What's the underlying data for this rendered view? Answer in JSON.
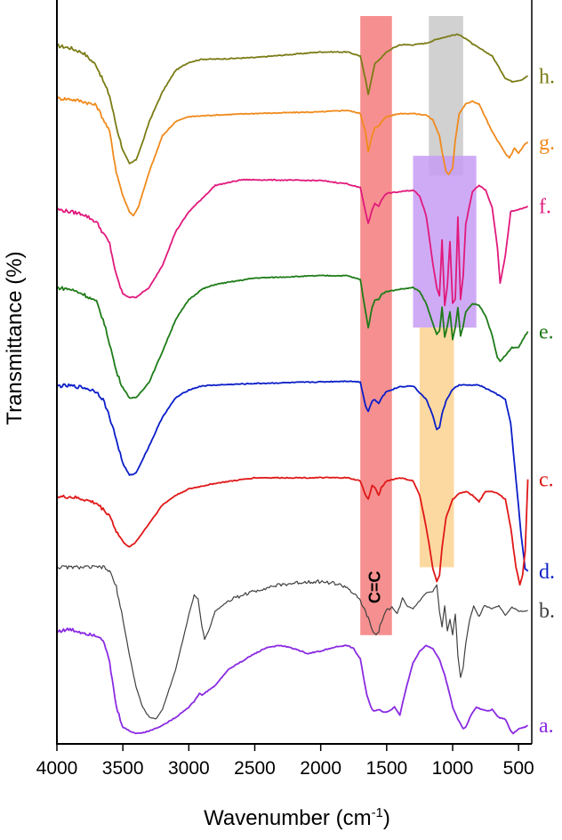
{
  "chart_data": {
    "type": "line",
    "xlabel": "Wavenumber (cm",
    "xlabel_sup": "-1",
    "xlabel_suffix": ")",
    "ylabel": "Transmittance (%)",
    "xlim": [
      4000,
      400
    ],
    "x_reversed": true,
    "x_ticks": [
      4000,
      3500,
      3000,
      2500,
      2000,
      1500,
      1000,
      500
    ],
    "x_tick_labels": [
      "4000",
      "3500",
      "3000",
      "2500",
      "2000",
      "1500",
      "1000",
      "500"
    ],
    "ylim": [
      0,
      9
    ],
    "y_ticks": false,
    "grid": false,
    "legend": "right-side labels",
    "highlight_bands": [
      {
        "x_start": 1700,
        "x_end": 1460,
        "y_top": 9.0,
        "y_bottom": 1.25,
        "color": "#f47c7c",
        "label": "C=C"
      },
      {
        "x_start": 1180,
        "x_end": 920,
        "y_top": 9.0,
        "y_bottom": 7.0,
        "color": "#c9c9c9",
        "label": ""
      },
      {
        "x_start": 1300,
        "x_end": 820,
        "y_top": 7.25,
        "y_bottom": 5.1,
        "color": "#c79cf5",
        "label": ""
      },
      {
        "x_start": 1250,
        "x_end": 990,
        "y_top": 5.1,
        "y_bottom": 2.1,
        "color": "#fbd28f",
        "label": ""
      }
    ],
    "series": [
      {
        "name": "h.",
        "color": "#7b7c16",
        "base": 8.48,
        "x": [
          4000,
          3900,
          3800,
          3700,
          3600,
          3550,
          3500,
          3450,
          3400,
          3350,
          3300,
          3200,
          3100,
          3000,
          2900,
          2800,
          2500,
          2000,
          1800,
          1700,
          1660,
          1640,
          1610,
          1590,
          1560,
          1540,
          1500,
          1450,
          1400,
          1300,
          1200,
          1100,
          1000,
          960,
          900,
          850,
          800,
          700,
          600,
          550,
          480,
          430
        ],
        "y": [
          8.63,
          8.6,
          8.54,
          8.38,
          8.0,
          7.62,
          7.32,
          7.15,
          7.2,
          7.42,
          7.68,
          8.05,
          8.32,
          8.42,
          8.46,
          8.46,
          8.48,
          8.55,
          8.55,
          8.5,
          8.2,
          8.02,
          8.25,
          8.4,
          8.45,
          8.48,
          8.55,
          8.6,
          8.64,
          8.64,
          8.66,
          8.72,
          8.76,
          8.77,
          8.72,
          8.65,
          8.6,
          8.5,
          8.22,
          8.18,
          8.2,
          8.25
        ]
      },
      {
        "name": "g.",
        "color": "#f08a1c",
        "base": 7.72,
        "x": [
          4000,
          3900,
          3800,
          3700,
          3600,
          3550,
          3500,
          3450,
          3420,
          3380,
          3300,
          3200,
          3100,
          3000,
          2800,
          2500,
          2000,
          1800,
          1700,
          1660,
          1640,
          1610,
          1590,
          1560,
          1540,
          1500,
          1400,
          1300,
          1200,
          1150,
          1100,
          1080,
          1050,
          1030,
          1000,
          980,
          950,
          900,
          850,
          800,
          700,
          600,
          570,
          530,
          500,
          450,
          430
        ],
        "y": [
          7.97,
          7.96,
          7.93,
          7.88,
          7.55,
          7.05,
          6.75,
          6.55,
          6.5,
          6.62,
          7.05,
          7.5,
          7.68,
          7.74,
          7.76,
          7.78,
          7.8,
          7.82,
          7.78,
          7.55,
          7.3,
          7.5,
          7.6,
          7.62,
          7.68,
          7.74,
          7.78,
          7.78,
          7.76,
          7.7,
          7.5,
          7.3,
          7.05,
          7.02,
          7.1,
          7.45,
          7.78,
          7.9,
          7.93,
          7.9,
          7.55,
          7.28,
          7.22,
          7.35,
          7.28,
          7.4,
          7.42
        ]
      },
      {
        "name": "f.",
        "color": "#e1197c",
        "base": 6.55,
        "x": [
          4000,
          3900,
          3800,
          3700,
          3600,
          3550,
          3500,
          3450,
          3400,
          3300,
          3200,
          3100,
          3000,
          2800,
          2600,
          2500,
          2000,
          1800,
          1700,
          1660,
          1640,
          1610,
          1590,
          1560,
          1540,
          1500,
          1400,
          1300,
          1250,
          1200,
          1150,
          1120,
          1100,
          1080,
          1060,
          1040,
          1020,
          1000,
          980,
          960,
          940,
          920,
          900,
          850,
          800,
          750,
          700,
          660,
          640,
          600,
          560,
          500,
          450,
          430
        ],
        "y": [
          6.58,
          6.55,
          6.52,
          6.42,
          6.15,
          5.75,
          5.52,
          5.48,
          5.48,
          5.6,
          5.88,
          6.3,
          6.55,
          6.88,
          6.95,
          6.95,
          6.94,
          6.9,
          6.85,
          6.55,
          6.4,
          6.58,
          6.65,
          6.62,
          6.7,
          6.78,
          6.8,
          6.82,
          6.75,
          6.5,
          5.9,
          5.6,
          5.5,
          6.2,
          5.38,
          5.62,
          6.18,
          5.4,
          5.45,
          6.48,
          5.45,
          5.75,
          6.4,
          6.8,
          6.88,
          6.82,
          6.6,
          6.1,
          5.65,
          6.0,
          6.55,
          6.58,
          6.6,
          6.62
        ]
      },
      {
        "name": "e.",
        "color": "#1f7c19",
        "base": 5.52,
        "x": [
          4000,
          3900,
          3800,
          3700,
          3650,
          3600,
          3550,
          3500,
          3450,
          3400,
          3300,
          3200,
          3100,
          3000,
          2900,
          2800,
          2500,
          2000,
          1800,
          1700,
          1660,
          1640,
          1610,
          1590,
          1560,
          1540,
          1500,
          1400,
          1300,
          1250,
          1200,
          1150,
          1120,
          1100,
          1080,
          1060,
          1040,
          1020,
          1000,
          980,
          960,
          940,
          920,
          900,
          850,
          800,
          750,
          700,
          660,
          640,
          600,
          550,
          500,
          450,
          430
        ],
        "y": [
          5.6,
          5.58,
          5.52,
          5.42,
          5.2,
          4.9,
          4.55,
          4.35,
          4.22,
          4.22,
          4.42,
          4.8,
          5.2,
          5.45,
          5.58,
          5.64,
          5.72,
          5.75,
          5.75,
          5.7,
          5.3,
          5.1,
          5.35,
          5.45,
          5.45,
          5.52,
          5.55,
          5.58,
          5.6,
          5.55,
          5.4,
          5.15,
          5.02,
          5.05,
          5.35,
          4.98,
          5.12,
          5.3,
          4.95,
          5.1,
          5.35,
          5.0,
          5.12,
          5.3,
          5.4,
          5.38,
          5.25,
          5.0,
          4.72,
          4.68,
          4.75,
          4.85,
          4.85,
          5.0,
          5.05
        ]
      },
      {
        "name": "d.",
        "color": "#0b1ec8",
        "base": 4.4,
        "x": [
          4000,
          3900,
          3800,
          3700,
          3650,
          3600,
          3550,
          3500,
          3450,
          3400,
          3300,
          3200,
          3100,
          3000,
          2900,
          2800,
          2500,
          2000,
          1800,
          1700,
          1660,
          1640,
          1610,
          1590,
          1560,
          1540,
          1500,
          1400,
          1300,
          1200,
          1150,
          1120,
          1100,
          1080,
          1050,
          1000,
          950,
          900,
          850,
          800,
          700,
          650,
          600,
          560,
          520,
          480,
          450,
          430
        ],
        "y": [
          4.37,
          4.37,
          4.35,
          4.3,
          4.2,
          3.98,
          3.7,
          3.4,
          3.25,
          3.28,
          3.62,
          3.98,
          4.22,
          4.32,
          4.37,
          4.38,
          4.4,
          4.42,
          4.43,
          4.42,
          4.12,
          4.05,
          4.18,
          4.2,
          4.15,
          4.22,
          4.3,
          4.36,
          4.37,
          4.2,
          4.0,
          3.82,
          3.85,
          4.02,
          4.18,
          4.33,
          4.38,
          4.38,
          4.38,
          4.38,
          4.3,
          4.25,
          4.2,
          3.9,
          3.2,
          2.5,
          2.08,
          2.05
        ]
      },
      {
        "name": "c.",
        "color": "#e01818",
        "base": 3.0,
        "x": [
          4000,
          3900,
          3800,
          3700,
          3600,
          3550,
          3500,
          3450,
          3400,
          3300,
          3200,
          3100,
          3000,
          2800,
          2500,
          2000,
          1800,
          1700,
          1660,
          1640,
          1610,
          1590,
          1560,
          1540,
          1500,
          1400,
          1300,
          1250,
          1200,
          1170,
          1150,
          1120,
          1100,
          1080,
          1050,
          1000,
          950,
          900,
          850,
          800,
          750,
          700,
          650,
          600,
          560,
          520,
          490,
          470,
          450,
          430
        ],
        "y": [
          2.98,
          2.98,
          2.95,
          2.9,
          2.75,
          2.55,
          2.42,
          2.35,
          2.42,
          2.65,
          2.88,
          3.0,
          3.08,
          3.15,
          3.22,
          3.22,
          3.22,
          3.18,
          3.0,
          2.95,
          3.12,
          3.1,
          3.0,
          3.1,
          3.18,
          3.22,
          3.18,
          3.0,
          2.6,
          2.3,
          2.08,
          1.92,
          2.0,
          2.35,
          2.72,
          2.95,
          3.02,
          3.05,
          3.0,
          2.92,
          3.05,
          3.05,
          3.02,
          2.95,
          2.6,
          2.1,
          1.88,
          2.0,
          2.3,
          3.2
        ]
      },
      {
        "name": "b.",
        "color": "#404040",
        "base": 1.55,
        "x": [
          4000,
          3900,
          3800,
          3700,
          3650,
          3600,
          3550,
          3500,
          3450,
          3400,
          3350,
          3300,
          3250,
          3200,
          3100,
          3000,
          2960,
          2930,
          2900,
          2880,
          2850,
          2800,
          2700,
          2600,
          2500,
          2400,
          2300,
          2200,
          2100,
          2000,
          1900,
          1800,
          1700,
          1650,
          1600,
          1580,
          1560,
          1540,
          1500,
          1460,
          1420,
          1400,
          1380,
          1350,
          1300,
          1250,
          1200,
          1150,
          1120,
          1100,
          1080,
          1060,
          1040,
          1020,
          1000,
          980,
          960,
          940,
          920,
          900,
          870,
          840,
          800,
          760,
          700,
          650,
          600,
          550,
          500,
          450,
          430
        ],
        "y": [
          2.1,
          2.1,
          2.1,
          2.1,
          2.1,
          2.05,
          1.85,
          1.45,
          1.0,
          0.6,
          0.35,
          0.22,
          0.2,
          0.32,
          0.82,
          1.5,
          1.75,
          1.7,
          1.35,
          1.2,
          1.3,
          1.55,
          1.68,
          1.75,
          1.8,
          1.85,
          1.88,
          1.9,
          1.92,
          1.92,
          1.9,
          1.85,
          1.68,
          1.5,
          1.28,
          1.25,
          1.3,
          1.42,
          1.55,
          1.62,
          1.52,
          1.6,
          1.72,
          1.62,
          1.58,
          1.68,
          1.78,
          1.8,
          1.88,
          1.55,
          1.35,
          1.62,
          1.3,
          1.45,
          1.25,
          1.52,
          1.0,
          0.72,
          0.85,
          1.15,
          1.45,
          1.62,
          1.48,
          1.62,
          1.58,
          1.62,
          1.5,
          1.6,
          1.55,
          1.55,
          1.56
        ]
      },
      {
        "name": "a.",
        "color": "#8a2be2",
        "base": 0.1,
        "x": [
          4000,
          3900,
          3800,
          3700,
          3650,
          3600,
          3550,
          3500,
          3450,
          3400,
          3350,
          3300,
          3200,
          3100,
          3000,
          2960,
          2920,
          2900,
          2800,
          2700,
          2600,
          2500,
          2400,
          2300,
          2200,
          2100,
          2000,
          1900,
          1800,
          1750,
          1700,
          1650,
          1620,
          1600,
          1560,
          1520,
          1480,
          1440,
          1400,
          1350,
          1300,
          1250,
          1200,
          1150,
          1100,
          1060,
          1020,
          1000,
          960,
          920,
          900,
          860,
          820,
          780,
          740,
          700,
          650,
          600,
          560,
          540,
          520,
          500,
          450,
          430
        ],
        "y": [
          1.3,
          1.32,
          1.28,
          1.25,
          1.2,
          0.9,
          0.35,
          0.1,
          0.05,
          0.02,
          0.03,
          0.05,
          0.12,
          0.22,
          0.35,
          0.42,
          0.52,
          0.5,
          0.62,
          0.82,
          0.92,
          1.02,
          1.1,
          1.12,
          1.08,
          1.02,
          1.05,
          1.1,
          1.12,
          1.08,
          0.95,
          0.5,
          0.35,
          0.3,
          0.32,
          0.28,
          0.3,
          0.35,
          0.25,
          0.6,
          0.9,
          1.05,
          1.12,
          1.08,
          0.95,
          0.75,
          0.5,
          0.35,
          0.2,
          0.08,
          0.1,
          0.25,
          0.35,
          0.32,
          0.3,
          0.32,
          0.22,
          0.2,
          0.05,
          0.02,
          0.05,
          0.08,
          0.1,
          0.12
        ]
      }
    ]
  }
}
